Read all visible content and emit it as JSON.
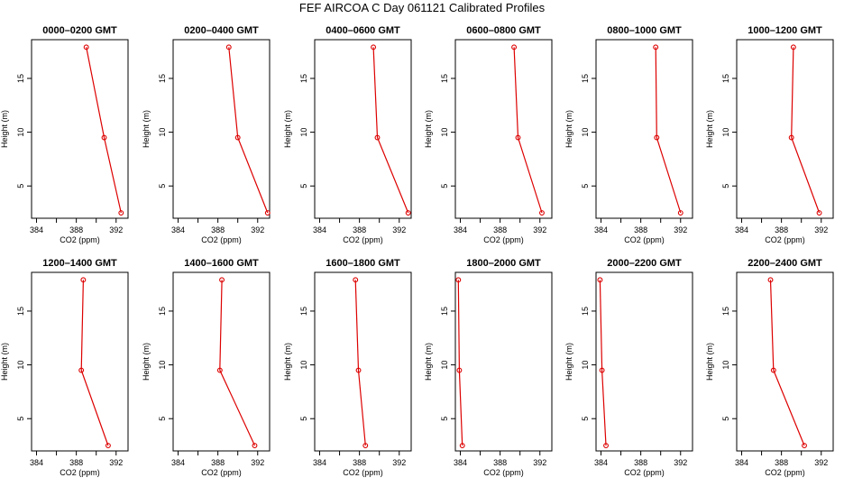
{
  "title": "FEF AIRCOA C  Day 061121  Calibrated Profiles",
  "colors": {
    "series": "#dd0000",
    "axis": "#000000"
  },
  "chart_data": [
    {
      "type": "line",
      "title": "0000–0200 GMT",
      "xlabel": "CO2 (ppm)",
      "ylabel": "Height (m)",
      "xlim": [
        383.5,
        393.2
      ],
      "ylim": [
        2,
        18.6
      ],
      "xticks": [
        384,
        388,
        392
      ],
      "yticks": [
        5,
        10,
        15
      ],
      "series": [
        {
          "x": [
            389.0,
            390.8,
            392.5
          ],
          "y": [
            17.9,
            9.5,
            2.5
          ]
        }
      ]
    },
    {
      "type": "line",
      "title": "0200–0400 GMT",
      "xlabel": "CO2 (ppm)",
      "ylabel": "Height (m)",
      "xlim": [
        383.5,
        393.2
      ],
      "ylim": [
        2,
        18.6
      ],
      "xticks": [
        384,
        388,
        392
      ],
      "yticks": [
        5,
        10,
        15
      ],
      "series": [
        {
          "x": [
            389.1,
            390.0,
            393.0
          ],
          "y": [
            17.9,
            9.5,
            2.5
          ]
        }
      ]
    },
    {
      "type": "line",
      "title": "0400–0600 GMT",
      "xlabel": "CO2 (ppm)",
      "ylabel": "Height (m)",
      "xlim": [
        383.5,
        393.2
      ],
      "ylim": [
        2,
        18.6
      ],
      "xticks": [
        384,
        388,
        392
      ],
      "yticks": [
        5,
        10,
        15
      ],
      "series": [
        {
          "x": [
            389.4,
            389.8,
            392.9
          ],
          "y": [
            17.9,
            9.5,
            2.5
          ]
        }
      ]
    },
    {
      "type": "line",
      "title": "0600–0800 GMT",
      "xlabel": "CO2 (ppm)",
      "ylabel": "Height (m)",
      "xlim": [
        383.5,
        393.2
      ],
      "ylim": [
        2,
        18.6
      ],
      "xticks": [
        384,
        388,
        392
      ],
      "yticks": [
        5,
        10,
        15
      ],
      "series": [
        {
          "x": [
            389.4,
            389.8,
            392.2
          ],
          "y": [
            17.9,
            9.5,
            2.5
          ]
        }
      ]
    },
    {
      "type": "line",
      "title": "0800–1000 GMT",
      "xlabel": "CO2 (ppm)",
      "ylabel": "Height (m)",
      "xlim": [
        383.5,
        393.2
      ],
      "ylim": [
        2,
        18.6
      ],
      "xticks": [
        384,
        388,
        392
      ],
      "yticks": [
        5,
        10,
        15
      ],
      "series": [
        {
          "x": [
            389.5,
            389.6,
            392.0
          ],
          "y": [
            17.9,
            9.5,
            2.5
          ]
        }
      ]
    },
    {
      "type": "line",
      "title": "1000–1200 GMT",
      "xlabel": "CO2 (ppm)",
      "ylabel": "Height (m)",
      "xlim": [
        383.5,
        393.2
      ],
      "ylim": [
        2,
        18.6
      ],
      "xticks": [
        384,
        388,
        392
      ],
      "yticks": [
        5,
        10,
        15
      ],
      "series": [
        {
          "x": [
            389.2,
            389.0,
            391.8
          ],
          "y": [
            17.9,
            9.5,
            2.5
          ]
        }
      ]
    },
    {
      "type": "line",
      "title": "1200–1400 GMT",
      "xlabel": "CO2 (ppm)",
      "ylabel": "Height (m)",
      "xlim": [
        383.5,
        393.2
      ],
      "ylim": [
        2,
        18.6
      ],
      "xticks": [
        384,
        388,
        392
      ],
      "yticks": [
        5,
        10,
        15
      ],
      "series": [
        {
          "x": [
            388.7,
            388.5,
            391.2
          ],
          "y": [
            17.9,
            9.5,
            2.5
          ]
        }
      ]
    },
    {
      "type": "line",
      "title": "1400–1600 GMT",
      "xlabel": "CO2 (ppm)",
      "ylabel": "Height (m)",
      "xlim": [
        383.5,
        393.2
      ],
      "ylim": [
        2,
        18.6
      ],
      "xticks": [
        384,
        388,
        392
      ],
      "yticks": [
        5,
        10,
        15
      ],
      "series": [
        {
          "x": [
            388.4,
            388.2,
            391.7
          ],
          "y": [
            17.9,
            9.5,
            2.5
          ]
        }
      ]
    },
    {
      "type": "line",
      "title": "1600–1800 GMT",
      "xlabel": "CO2 (ppm)",
      "ylabel": "Height (m)",
      "xlim": [
        383.5,
        393.2
      ],
      "ylim": [
        2,
        18.6
      ],
      "xticks": [
        384,
        388,
        392
      ],
      "yticks": [
        5,
        10,
        15
      ],
      "series": [
        {
          "x": [
            387.6,
            387.9,
            388.6
          ],
          "y": [
            17.9,
            9.5,
            2.5
          ]
        }
      ]
    },
    {
      "type": "line",
      "title": "1800–2000 GMT",
      "xlabel": "CO2 (ppm)",
      "ylabel": "Height (m)",
      "xlim": [
        383.5,
        393.2
      ],
      "ylim": [
        2,
        18.6
      ],
      "xticks": [
        384,
        388,
        392
      ],
      "yticks": [
        5,
        10,
        15
      ],
      "series": [
        {
          "x": [
            383.8,
            383.9,
            384.2
          ],
          "y": [
            17.9,
            9.5,
            2.5
          ]
        }
      ]
    },
    {
      "type": "line",
      "title": "2000–2200 GMT",
      "xlabel": "CO2 (ppm)",
      "ylabel": "Height (m)",
      "xlim": [
        383.5,
        393.2
      ],
      "ylim": [
        2,
        18.6
      ],
      "xticks": [
        384,
        388,
        392
      ],
      "yticks": [
        5,
        10,
        15
      ],
      "series": [
        {
          "x": [
            383.9,
            384.1,
            384.5
          ],
          "y": [
            17.9,
            9.5,
            2.5
          ]
        }
      ]
    },
    {
      "type": "line",
      "title": "2200–2400 GMT",
      "xlabel": "CO2 (ppm)",
      "ylabel": "Height (m)",
      "xlim": [
        383.5,
        393.2
      ],
      "ylim": [
        2,
        18.6
      ],
      "xticks": [
        384,
        388,
        392
      ],
      "yticks": [
        5,
        10,
        15
      ],
      "series": [
        {
          "x": [
            386.9,
            387.2,
            390.3
          ],
          "y": [
            17.9,
            9.5,
            2.5
          ]
        }
      ]
    }
  ]
}
